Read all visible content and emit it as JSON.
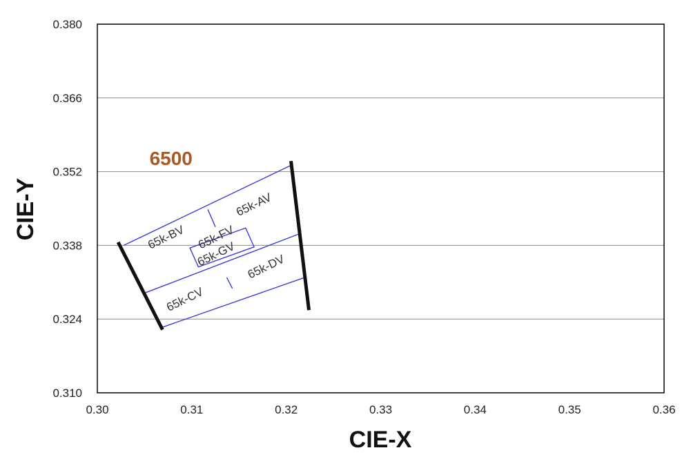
{
  "chart_data": {
    "type": "scatter",
    "xlabel": "CIE-X",
    "ylabel": "CIE-Y",
    "xlim": [
      0.3,
      0.36
    ],
    "ylim": [
      0.31,
      0.38
    ],
    "x_ticks": [
      "0.30",
      "0.31",
      "0.32",
      "0.33",
      "0.34",
      "0.35",
      "0.36"
    ],
    "y_ticks": [
      "0.310",
      "0.324",
      "0.338",
      "0.352",
      "0.366",
      "0.380"
    ],
    "grid": "horizontal",
    "annotations": [
      {
        "text": "6500",
        "x": 0.3078,
        "y": 0.3542,
        "color": "#a65a28"
      }
    ],
    "isotherm_lines": [
      {
        "name": "left-isotherm",
        "points": [
          [
            0.3022,
            0.3386
          ],
          [
            0.3069,
            0.322
          ]
        ]
      },
      {
        "name": "right-isotherm",
        "points": [
          [
            0.3205,
            0.354
          ],
          [
            0.3224,
            0.3257
          ]
        ]
      }
    ],
    "grid_lines": [
      {
        "name": "top-edge",
        "points": [
          [
            0.3028,
            0.338
          ],
          [
            0.3205,
            0.3532
          ]
        ]
      },
      {
        "name": "middle-line",
        "points": [
          [
            0.3048,
            0.3288
          ],
          [
            0.3214,
            0.3402
          ]
        ]
      },
      {
        "name": "bottom-edge",
        "points": [
          [
            0.3068,
            0.3224
          ],
          [
            0.3218,
            0.3318
          ]
        ]
      },
      {
        "name": "upper-divider",
        "points": [
          [
            0.3117,
            0.3448
          ],
          [
            0.3125,
            0.3415
          ]
        ]
      },
      {
        "name": "lower-divider",
        "points": [
          [
            0.3137,
            0.3319
          ],
          [
            0.3143,
            0.3298
          ]
        ]
      }
    ],
    "bins": [
      {
        "label": "65k-AV",
        "x": 0.3166,
        "y": 0.3456
      },
      {
        "label": "65k-BV",
        "x": 0.3073,
        "y": 0.3394
      },
      {
        "label": "65k-CV",
        "x": 0.3093,
        "y": 0.3276
      },
      {
        "label": "65k-DV",
        "x": 0.3179,
        "y": 0.3338
      },
      {
        "label": "65k-FV",
        "x": 0.3126,
        "y": 0.3394
      },
      {
        "label": "65k-GV",
        "x": 0.3126,
        "y": 0.3362
      }
    ],
    "center_box": {
      "name": "center-box",
      "points": [
        [
          0.3098,
          0.3375
        ],
        [
          0.3157,
          0.3413
        ],
        [
          0.3166,
          0.3377
        ],
        [
          0.3107,
          0.3339
        ]
      ]
    },
    "colors": {
      "bin_outline": "#3b3bd6",
      "isotherm": "#111111",
      "grid": "#8c8c8c",
      "frame": "#000000"
    }
  }
}
